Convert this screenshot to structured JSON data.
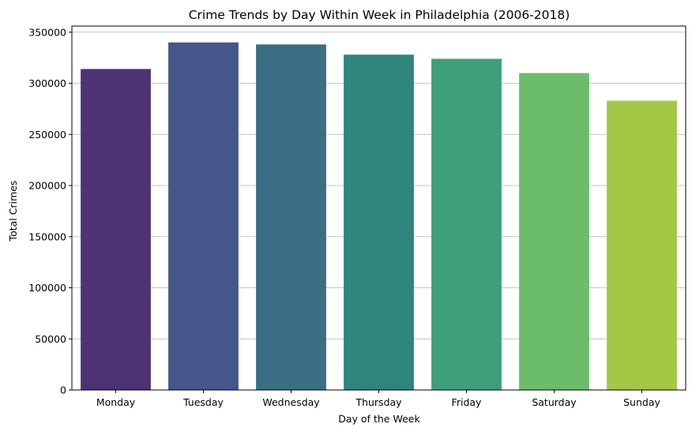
{
  "chart_data": {
    "type": "bar",
    "title": "Crime Trends by Day Within Week in Philadelphia (2006-2018)",
    "xlabel": "Day of the Week",
    "ylabel": "Total Crimes",
    "categories": [
      "Monday",
      "Tuesday",
      "Wednesday",
      "Thursday",
      "Friday",
      "Saturday",
      "Sunday"
    ],
    "values": [
      314000,
      340000,
      338000,
      328000,
      324000,
      310000,
      283000
    ],
    "colors": [
      "#4d3374",
      "#45568a",
      "#3a6e85",
      "#2d857b",
      "#3da07b",
      "#6bbd6c",
      "#a4c745"
    ],
    "ylim": [
      0,
      356000
    ],
    "yticks": [
      0,
      50000,
      100000,
      150000,
      200000,
      250000,
      300000,
      350000
    ],
    "ytick_labels": [
      "0",
      "50000",
      "100000",
      "150000",
      "200000",
      "250000",
      "300000",
      "350000"
    ],
    "grid": "y",
    "legend": "none"
  }
}
